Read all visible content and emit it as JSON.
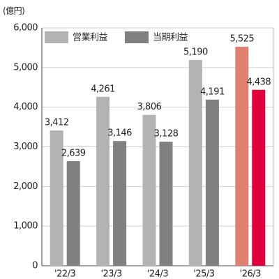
{
  "chart_data": {
    "type": "bar",
    "unit": "(億円)",
    "categories": [
      "'22/3",
      "'23/3",
      "'24/3",
      "'25/3",
      "'26/3"
    ],
    "series": [
      {
        "name": "営業利益",
        "color": "#b3b3b3",
        "colors": [
          "#b3b3b3",
          "#b3b3b3",
          "#b3b3b3",
          "#b3b3b3",
          "#e0806e"
        ],
        "values": [
          3412,
          4261,
          3806,
          5190,
          5525
        ],
        "value_labels": [
          "3,412",
          "4,261",
          "3,806",
          "5,190",
          "5,525"
        ]
      },
      {
        "name": "当期利益",
        "color": "#808080",
        "colors": [
          "#808080",
          "#808080",
          "#808080",
          "#808080",
          "#e0003c"
        ],
        "values": [
          2639,
          3146,
          3128,
          4191,
          4438
        ],
        "value_labels": [
          "2,639",
          "3,146",
          "3,128",
          "4,191",
          "4,438"
        ]
      }
    ],
    "ylim": [
      0,
      6000
    ],
    "yticks": [
      0,
      {
        "value": 1000,
        "label": "1,000"
      },
      {
        "value": 2000,
        "label": "2,000"
      },
      {
        "value": 3000,
        "label": "3,000"
      },
      {
        "value": 4000,
        "label": "4,000"
      },
      {
        "value": 5000,
        "label": "5,000"
      },
      {
        "value": 6000,
        "label": "6,000"
      }
    ],
    "grid": true,
    "legend": "top-left"
  }
}
